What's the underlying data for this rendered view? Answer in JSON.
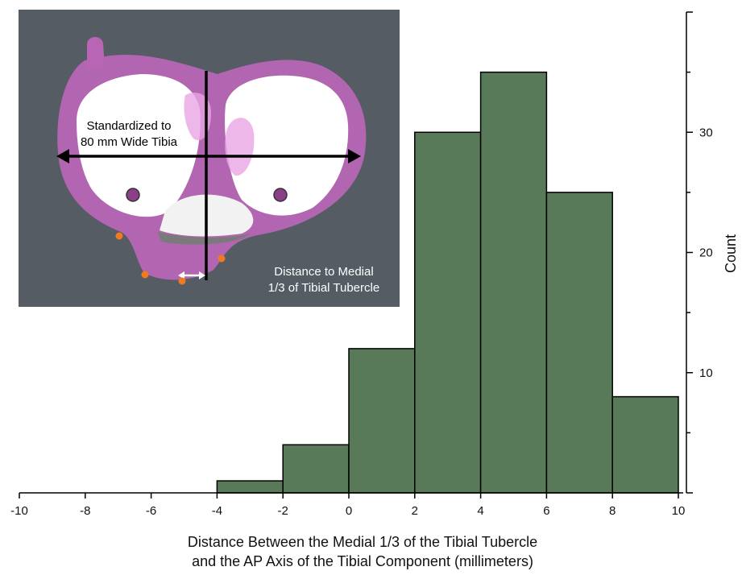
{
  "chart_data": {
    "type": "bar",
    "bins": [
      {
        "x0": -4,
        "x1": -2,
        "count": 1
      },
      {
        "x0": -2,
        "x1": 0,
        "count": 4
      },
      {
        "x0": 0,
        "x1": 2,
        "count": 12
      },
      {
        "x0": 2,
        "x1": 4,
        "count": 30
      },
      {
        "x0": 4,
        "x1": 6,
        "count": 35
      },
      {
        "x0": 6,
        "x1": 8,
        "count": 25
      },
      {
        "x0": 8,
        "x1": 10,
        "count": 8
      }
    ],
    "xlim": [
      -10,
      10
    ],
    "ylim": [
      0,
      40
    ],
    "x_ticks": [
      -10,
      -8,
      -6,
      -4,
      -2,
      0,
      2,
      4,
      6,
      8,
      10
    ],
    "y_ticks": [
      10,
      20,
      30
    ],
    "xlabel_line1": "Distance Between the Medial 1/3 of the Tibial Tubercle",
    "xlabel_line2": "and the AP Axis of the Tibial Component (millimeters)",
    "ylabel": "Count",
    "y_axis_side": "right",
    "bar_color": "#587a59",
    "grid": false
  },
  "inset": {
    "label_standardized_line1": "Standardized to",
    "label_standardized_line2": "80 mm Wide Tibia",
    "label_distance_line1": "Distance to Medial",
    "label_distance_line2": "1/3 of Tibial Tubercle",
    "background_color": "#555c64",
    "rim_color": "#b765b4",
    "surface_color": "#ffffff",
    "marker_color": "#f07a1e"
  }
}
